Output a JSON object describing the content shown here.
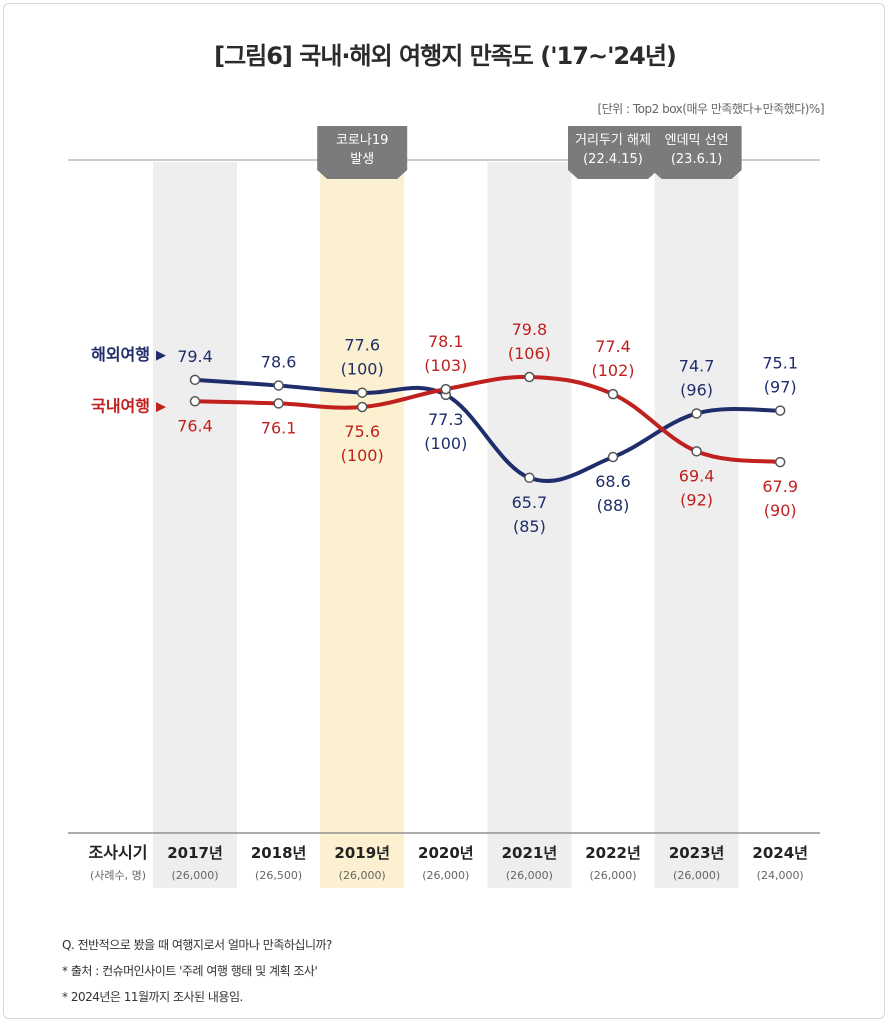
{
  "title": "[그림6] 국내·해외 여행지 만족도 ('17~'24년)",
  "unit": "[단위 : Top2 box(매우 만족했다+만족했다)%]",
  "colors": {
    "overseas": "#1f2d6b",
    "domestic": "#c0211f",
    "highlight": "#fbf0cf",
    "band": "#eeeeee",
    "event": "#7b7b7b"
  },
  "events": [
    {
      "text": "코로나19 발생",
      "lines": [
        "코로나19",
        "발생"
      ],
      "year": "2019년"
    },
    {
      "text": "거리두기 해제 (22.4.15)",
      "lines": [
        "거리두기 해제",
        "(22.4.15)"
      ],
      "year": "2022년"
    },
    {
      "text": "엔데믹 선언 (23.6.1)",
      "lines": [
        "엔데믹 선언",
        "(23.6.1)"
      ],
      "year": "2023년"
    }
  ],
  "footer": {
    "row_label": "조사시기",
    "row_sublabel": "(사례수, 명)",
    "sample_sizes": [
      "(26,000)",
      "(26,500)",
      "(26,000)",
      "(26,000)",
      "(26,000)",
      "(26,000)",
      "(26,000)",
      "(24,000)"
    ]
  },
  "notes": [
    "Q. 전반적으로 봤을 때 여행지로서 얼마나 만족하십니까?",
    "* 출처 : 컨슈머인사이트 '주례 여행 행태 및 계획 조사'",
    "* 2024년은 11월까지 조사된 내용임."
  ],
  "chart_data": {
    "type": "line",
    "title": "[그림6] 국내·해외 여행지 만족도 ('17~'24년)",
    "categories": [
      "2017년",
      "2018년",
      "2019년",
      "2020년",
      "2021년",
      "2022년",
      "2023년",
      "2024년"
    ],
    "ylabel": "",
    "ylim": [
      60,
      85
    ],
    "grid": false,
    "legend": "left",
    "series": [
      {
        "name": "해외여행",
        "values": [
          79.4,
          78.6,
          77.6,
          77.3,
          65.7,
          68.6,
          74.7,
          75.1
        ],
        "labels": [
          "79.4",
          "78.6",
          "77.6",
          "77.3",
          "65.7",
          "68.6",
          "74.7",
          "75.1"
        ],
        "index": [
          "",
          "",
          "(100)",
          "(100)",
          "(85)",
          "(88)",
          "(96)",
          "(97)"
        ]
      },
      {
        "name": "국내여행",
        "values": [
          76.4,
          76.1,
          75.6,
          78.1,
          79.8,
          77.4,
          69.4,
          67.9
        ],
        "labels": [
          "76.4",
          "76.1",
          "75.6",
          "78.1",
          "79.8",
          "77.4",
          "69.4",
          "67.9"
        ],
        "index": [
          "",
          "",
          "(100)",
          "(103)",
          "(106)",
          "(102)",
          "(92)",
          "(90)"
        ]
      }
    ]
  }
}
